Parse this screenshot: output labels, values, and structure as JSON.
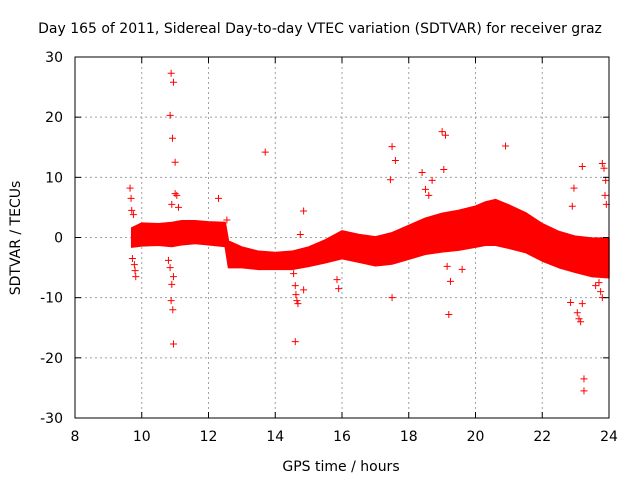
{
  "chart_data": {
    "type": "scatter",
    "title": "Day 165 of 2011, Sidereal Day-to-day VTEC variation (SDTVAR) for receiver graz",
    "xlabel": "GPS time / hours",
    "ylabel": "SDTVAR / TECUs",
    "xlim": [
      8,
      24
    ],
    "ylim": [
      -30,
      30
    ],
    "x_ticks": [
      8,
      10,
      12,
      14,
      16,
      18,
      20,
      22,
      24
    ],
    "x_tick_labels": [
      "8",
      "10",
      "12",
      "14",
      "16",
      "18",
      "20",
      "22",
      "24"
    ],
    "y_ticks": [
      -30,
      -20,
      -10,
      0,
      10,
      20,
      30
    ],
    "y_tick_labels": [
      "-30",
      "-20",
      "-10",
      "0",
      "10",
      "20",
      "30"
    ],
    "grid": true,
    "marker": "+",
    "series_color": "#ff0000",
    "band": {
      "description": "dense data band: center and half-width of the scatter cloud versus GPS time",
      "x": [
        9.7,
        10.0,
        10.5,
        10.9,
        11.2,
        11.6,
        12.0,
        12.5,
        12.6,
        13.0,
        13.5,
        14.0,
        14.5,
        15.0,
        15.5,
        16.0,
        16.5,
        17.0,
        17.5,
        18.0,
        18.5,
        19.0,
        19.5,
        20.0,
        20.3,
        20.6,
        21.0,
        21.5,
        22.0,
        22.5,
        23.0,
        23.5,
        24.0
      ],
      "center": [
        0.0,
        0.5,
        0.5,
        0.5,
        0.8,
        0.9,
        0.7,
        0.5,
        -2.8,
        -3.3,
        -3.8,
        -3.9,
        -3.8,
        -3.2,
        -2.3,
        -1.2,
        -1.8,
        -2.3,
        -1.8,
        -0.8,
        0.2,
        0.8,
        1.2,
        1.8,
        2.3,
        2.5,
        1.8,
        0.8,
        -0.8,
        -2.0,
        -2.8,
        -3.3,
        -3.4
      ],
      "halfwidth": [
        1.6,
        1.9,
        1.8,
        2.0,
        2.0,
        1.9,
        1.9,
        2.0,
        2.2,
        1.7,
        1.5,
        1.4,
        1.5,
        1.6,
        1.9,
        2.3,
        2.3,
        2.4,
        2.6,
        2.8,
        3.0,
        3.2,
        3.3,
        3.4,
        3.6,
        3.8,
        3.6,
        3.3,
        3.1,
        3.0,
        3.0,
        3.2,
        3.3
      ]
    },
    "outliers": [
      {
        "x": 9.65,
        "y": 8.2
      },
      {
        "x": 9.68,
        "y": 6.5
      },
      {
        "x": 9.7,
        "y": 4.5
      },
      {
        "x": 9.75,
        "y": 3.8
      },
      {
        "x": 9.72,
        "y": -3.5
      },
      {
        "x": 9.78,
        "y": -4.5
      },
      {
        "x": 9.8,
        "y": -5.5
      },
      {
        "x": 9.82,
        "y": -6.5
      },
      {
        "x": 10.88,
        "y": 27.3
      },
      {
        "x": 10.95,
        "y": 25.8
      },
      {
        "x": 10.85,
        "y": 20.3
      },
      {
        "x": 10.92,
        "y": 16.5
      },
      {
        "x": 11.0,
        "y": 12.5
      },
      {
        "x": 11.0,
        "y": 7.3
      },
      {
        "x": 11.05,
        "y": 7.0
      },
      {
        "x": 10.9,
        "y": 5.5
      },
      {
        "x": 11.1,
        "y": 5.0
      },
      {
        "x": 10.8,
        "y": -3.8
      },
      {
        "x": 10.85,
        "y": -5.0
      },
      {
        "x": 10.95,
        "y": -6.5
      },
      {
        "x": 10.9,
        "y": -7.8
      },
      {
        "x": 10.88,
        "y": -10.5
      },
      {
        "x": 10.93,
        "y": -12.0
      },
      {
        "x": 10.95,
        "y": -17.7
      },
      {
        "x": 12.3,
        "y": 6.5
      },
      {
        "x": 12.55,
        "y": 2.9
      },
      {
        "x": 13.7,
        "y": 14.2
      },
      {
        "x": 14.55,
        "y": -6.0
      },
      {
        "x": 14.6,
        "y": -8.0
      },
      {
        "x": 14.62,
        "y": -9.5
      },
      {
        "x": 14.65,
        "y": -10.5
      },
      {
        "x": 14.68,
        "y": -11.0
      },
      {
        "x": 14.6,
        "y": -17.3
      },
      {
        "x": 14.85,
        "y": 4.4
      },
      {
        "x": 14.85,
        "y": -8.7
      },
      {
        "x": 14.75,
        "y": 0.5
      },
      {
        "x": 15.85,
        "y": -7.0
      },
      {
        "x": 15.9,
        "y": -8.5
      },
      {
        "x": 17.5,
        "y": 15.1
      },
      {
        "x": 17.6,
        "y": 12.8
      },
      {
        "x": 17.45,
        "y": 9.6
      },
      {
        "x": 17.5,
        "y": -10.0
      },
      {
        "x": 18.4,
        "y": 10.8
      },
      {
        "x": 18.5,
        "y": 8.0
      },
      {
        "x": 18.6,
        "y": 7.0
      },
      {
        "x": 18.7,
        "y": 9.5
      },
      {
        "x": 19.0,
        "y": 17.6
      },
      {
        "x": 19.1,
        "y": 17.0
      },
      {
        "x": 19.05,
        "y": 11.3
      },
      {
        "x": 19.2,
        "y": -12.8
      },
      {
        "x": 19.25,
        "y": -7.3
      },
      {
        "x": 19.15,
        "y": -4.8
      },
      {
        "x": 19.6,
        "y": -5.3
      },
      {
        "x": 20.9,
        "y": 15.2
      },
      {
        "x": 22.95,
        "y": 8.2
      },
      {
        "x": 22.9,
        "y": 5.2
      },
      {
        "x": 22.85,
        "y": -10.8
      },
      {
        "x": 23.05,
        "y": -12.5
      },
      {
        "x": 23.1,
        "y": -13.5
      },
      {
        "x": 23.15,
        "y": -14.0
      },
      {
        "x": 23.2,
        "y": -11.0
      },
      {
        "x": 23.2,
        "y": 11.8
      },
      {
        "x": 23.25,
        "y": -23.5
      },
      {
        "x": 23.25,
        "y": -25.5
      },
      {
        "x": 23.8,
        "y": 12.3
      },
      {
        "x": 23.85,
        "y": 11.5
      },
      {
        "x": 23.9,
        "y": 9.5
      },
      {
        "x": 23.88,
        "y": 7.0
      },
      {
        "x": 23.92,
        "y": 5.5
      },
      {
        "x": 23.7,
        "y": -7.5
      },
      {
        "x": 23.75,
        "y": -9.0
      },
      {
        "x": 23.8,
        "y": -10.0
      },
      {
        "x": 23.6,
        "y": -8.0
      }
    ]
  }
}
